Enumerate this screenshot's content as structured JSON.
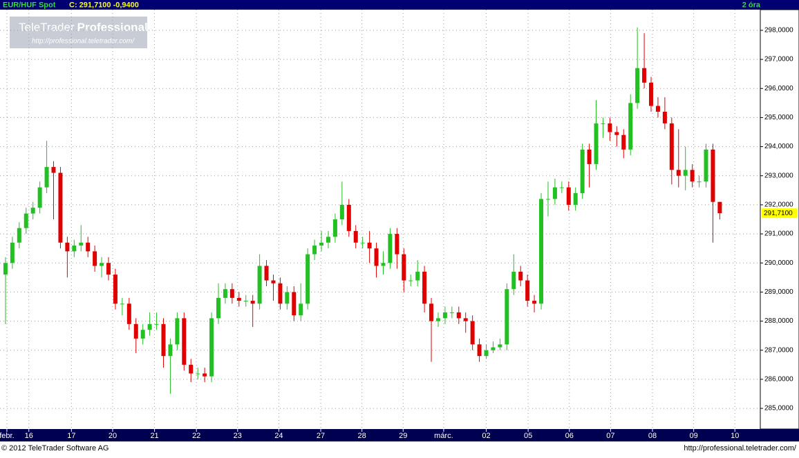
{
  "chart_data": {
    "type": "candlestick",
    "title": "EUR/HUF Spot",
    "subtitle": "C: 291,7100 -0,9400",
    "period_label": "2 óra",
    "last_price": {
      "value": 291.71,
      "label": "291,7100"
    },
    "up_color": "#22c022",
    "down_color": "#e00000",
    "grid": true,
    "ylim": [
      284.29,
      298.71
    ],
    "yticks": [
      {
        "value": 285,
        "label": "285,0000"
      },
      {
        "value": 286,
        "label": "286,0000"
      },
      {
        "value": 287,
        "label": "287,0000"
      },
      {
        "value": 288,
        "label": "288,0000"
      },
      {
        "value": 289,
        "label": "289,0000"
      },
      {
        "value": 290,
        "label": "290,0000"
      },
      {
        "value": 291,
        "label": "291,0000"
      },
      {
        "value": 292,
        "label": "292,0000"
      },
      {
        "value": 293,
        "label": "293,0000"
      },
      {
        "value": 294,
        "label": "294,0000"
      },
      {
        "value": 295,
        "label": "295,0000"
      },
      {
        "value": 296,
        "label": "296,0000"
      },
      {
        "value": 297,
        "label": "297,0000"
      },
      {
        "value": 298,
        "label": "298,0000"
      }
    ],
    "xlim": [
      -0.8,
      109.9
    ],
    "xticks": [
      {
        "value": 0.2,
        "label": "febr."
      },
      {
        "value": 3.4,
        "label": "16"
      },
      {
        "value": 9.6,
        "label": "17"
      },
      {
        "value": 15.6,
        "label": "20"
      },
      {
        "value": 21.7,
        "label": "21"
      },
      {
        "value": 27.8,
        "label": "22"
      },
      {
        "value": 33.8,
        "label": "23"
      },
      {
        "value": 39.8,
        "label": "24"
      },
      {
        "value": 45.9,
        "label": "27"
      },
      {
        "value": 51.9,
        "label": "28"
      },
      {
        "value": 57.9,
        "label": "29"
      },
      {
        "value": 63.8,
        "label": "márc."
      },
      {
        "value": 70.0,
        "label": "02"
      },
      {
        "value": 76.1,
        "label": "05"
      },
      {
        "value": 82.1,
        "label": "06"
      },
      {
        "value": 88.1,
        "label": "07"
      },
      {
        "value": 94.2,
        "label": "08"
      },
      {
        "value": 100.2,
        "label": "09"
      },
      {
        "value": 106.2,
        "label": "10"
      }
    ],
    "series": {
      "open": [
        289.6,
        290.0,
        290.7,
        291.2,
        291.7,
        291.9,
        292.6,
        293.3,
        293.1,
        290.7,
        290.4,
        290.6,
        290.7,
        290.4,
        289.9,
        290.0,
        289.6,
        288.6,
        288.6,
        287.9,
        287.4,
        287.7,
        287.9,
        287.9,
        286.8,
        287.2,
        288.1,
        286.5,
        286.2,
        286.2,
        286.1,
        288.1,
        288.8,
        289.1,
        288.8,
        288.7,
        288.7,
        288.6,
        289.9,
        289.4,
        289.3,
        288.6,
        289.0,
        288.2,
        288.6,
        290.3,
        290.6,
        290.7,
        290.9,
        291.5,
        292.0,
        291.1,
        290.7,
        290.7,
        290.5,
        289.9,
        290.0,
        291.0,
        290.3,
        289.4,
        289.4,
        289.7,
        288.6,
        288.0,
        288.1,
        288.3,
        288.3,
        288.1,
        288.0,
        287.2,
        286.8,
        287.0,
        287.1,
        287.2,
        289.1,
        289.7,
        289.4,
        288.7,
        288.6,
        292.2,
        292.2,
        292.6,
        292.6,
        292.0,
        292.4,
        293.9,
        293.4,
        294.8,
        294.8,
        294.5,
        294.4,
        293.9,
        295.5,
        296.7,
        296.2,
        295.4,
        295.2,
        294.8,
        293.2,
        293.0,
        293.2,
        292.8,
        292.8,
        293.9,
        292.1
      ],
      "high": [
        290.2,
        290.9,
        291.4,
        291.9,
        292.1,
        292.8,
        294.2,
        293.5,
        293.3,
        290.9,
        290.8,
        291.3,
        290.9,
        290.6,
        290.2,
        290.2,
        289.8,
        288.8,
        288.8,
        288.1,
        287.9,
        288.3,
        288.3,
        288.1,
        287.4,
        288.3,
        288.3,
        286.7,
        286.4,
        286.4,
        288.3,
        289.3,
        289.3,
        289.3,
        289.0,
        288.9,
        288.9,
        290.3,
        290.1,
        289.6,
        289.5,
        289.2,
        289.2,
        289.3,
        290.5,
        290.8,
        291.1,
        291.1,
        291.7,
        292.8,
        292.2,
        291.3,
        290.9,
        291.1,
        290.7,
        290.4,
        291.2,
        291.2,
        290.5,
        289.6,
        290.1,
        289.9,
        288.8,
        288.3,
        288.5,
        288.5,
        288.5,
        288.3,
        288.2,
        287.4,
        287.2,
        287.3,
        287.4,
        289.3,
        290.3,
        289.9,
        289.6,
        288.9,
        292.4,
        292.8,
        292.9,
        292.8,
        292.8,
        292.6,
        294.1,
        294.1,
        295.6,
        295.0,
        295.0,
        294.7,
        294.6,
        295.8,
        298.1,
        297.9,
        296.4,
        295.7,
        295.7,
        295.0,
        294.6,
        294.0,
        293.4,
        293.0,
        294.1,
        294.1,
        292.1
      ],
      "low": [
        287.9,
        289.8,
        290.5,
        291.0,
        291.5,
        291.7,
        292.4,
        291.5,
        290.5,
        289.5,
        290.2,
        290.4,
        290.2,
        289.7,
        289.5,
        289.4,
        288.4,
        288.2,
        287.7,
        286.9,
        287.2,
        287.5,
        287.7,
        286.4,
        285.5,
        287.0,
        286.3,
        285.9,
        286.0,
        285.9,
        285.9,
        287.9,
        288.6,
        288.6,
        288.5,
        288.5,
        287.8,
        288.4,
        289.2,
        288.7,
        288.4,
        288.4,
        288.0,
        288.0,
        288.4,
        290.1,
        290.4,
        290.5,
        290.7,
        291.3,
        290.9,
        290.5,
        290.5,
        290.0,
        289.5,
        289.6,
        289.8,
        289.8,
        289.0,
        289.2,
        289.2,
        288.3,
        286.6,
        287.8,
        287.9,
        288.1,
        287.9,
        287.6,
        287.0,
        286.6,
        286.7,
        286.9,
        287.0,
        287.0,
        288.9,
        289.2,
        288.5,
        288.3,
        288.4,
        291.6,
        292.0,
        292.4,
        291.8,
        291.8,
        292.2,
        292.6,
        293.2,
        294.3,
        294.2,
        294.0,
        293.6,
        293.7,
        295.3,
        296.0,
        295.2,
        295.0,
        294.6,
        292.7,
        292.6,
        292.5,
        292.6,
        292.6,
        292.6,
        290.7,
        291.5
      ],
      "close": [
        290.0,
        290.7,
        291.2,
        291.7,
        291.9,
        292.6,
        293.3,
        293.1,
        290.7,
        290.4,
        290.6,
        290.7,
        290.4,
        289.9,
        290.0,
        289.6,
        288.6,
        288.6,
        287.9,
        287.4,
        287.7,
        287.9,
        287.9,
        286.8,
        287.2,
        288.1,
        286.5,
        286.2,
        286.2,
        286.1,
        288.1,
        288.8,
        289.1,
        288.8,
        288.7,
        288.7,
        288.6,
        289.9,
        289.4,
        289.3,
        288.6,
        289.0,
        288.2,
        288.6,
        290.3,
        290.6,
        290.7,
        290.9,
        291.5,
        292.0,
        291.1,
        290.7,
        290.7,
        290.5,
        289.9,
        290.0,
        291.0,
        290.3,
        289.4,
        289.4,
        289.7,
        288.6,
        288.0,
        288.1,
        288.3,
        288.3,
        288.1,
        288.0,
        287.2,
        286.8,
        287.0,
        287.1,
        287.2,
        289.1,
        289.7,
        289.4,
        288.7,
        288.6,
        292.2,
        292.2,
        292.6,
        292.6,
        292.0,
        292.4,
        293.9,
        293.4,
        294.8,
        294.8,
        294.5,
        294.4,
        293.9,
        295.5,
        296.7,
        296.2,
        295.4,
        295.2,
        294.8,
        293.2,
        293.0,
        293.2,
        292.8,
        292.8,
        293.9,
        292.1,
        291.71
      ]
    }
  },
  "logo": {
    "name": "TeleTrader",
    "edition": "Professional",
    "url": "http://professional.teletrader.com/"
  },
  "footer": {
    "copyright": "© 2012 TeleTrader Software AG",
    "url": "http://professional.teletrader.com/"
  }
}
